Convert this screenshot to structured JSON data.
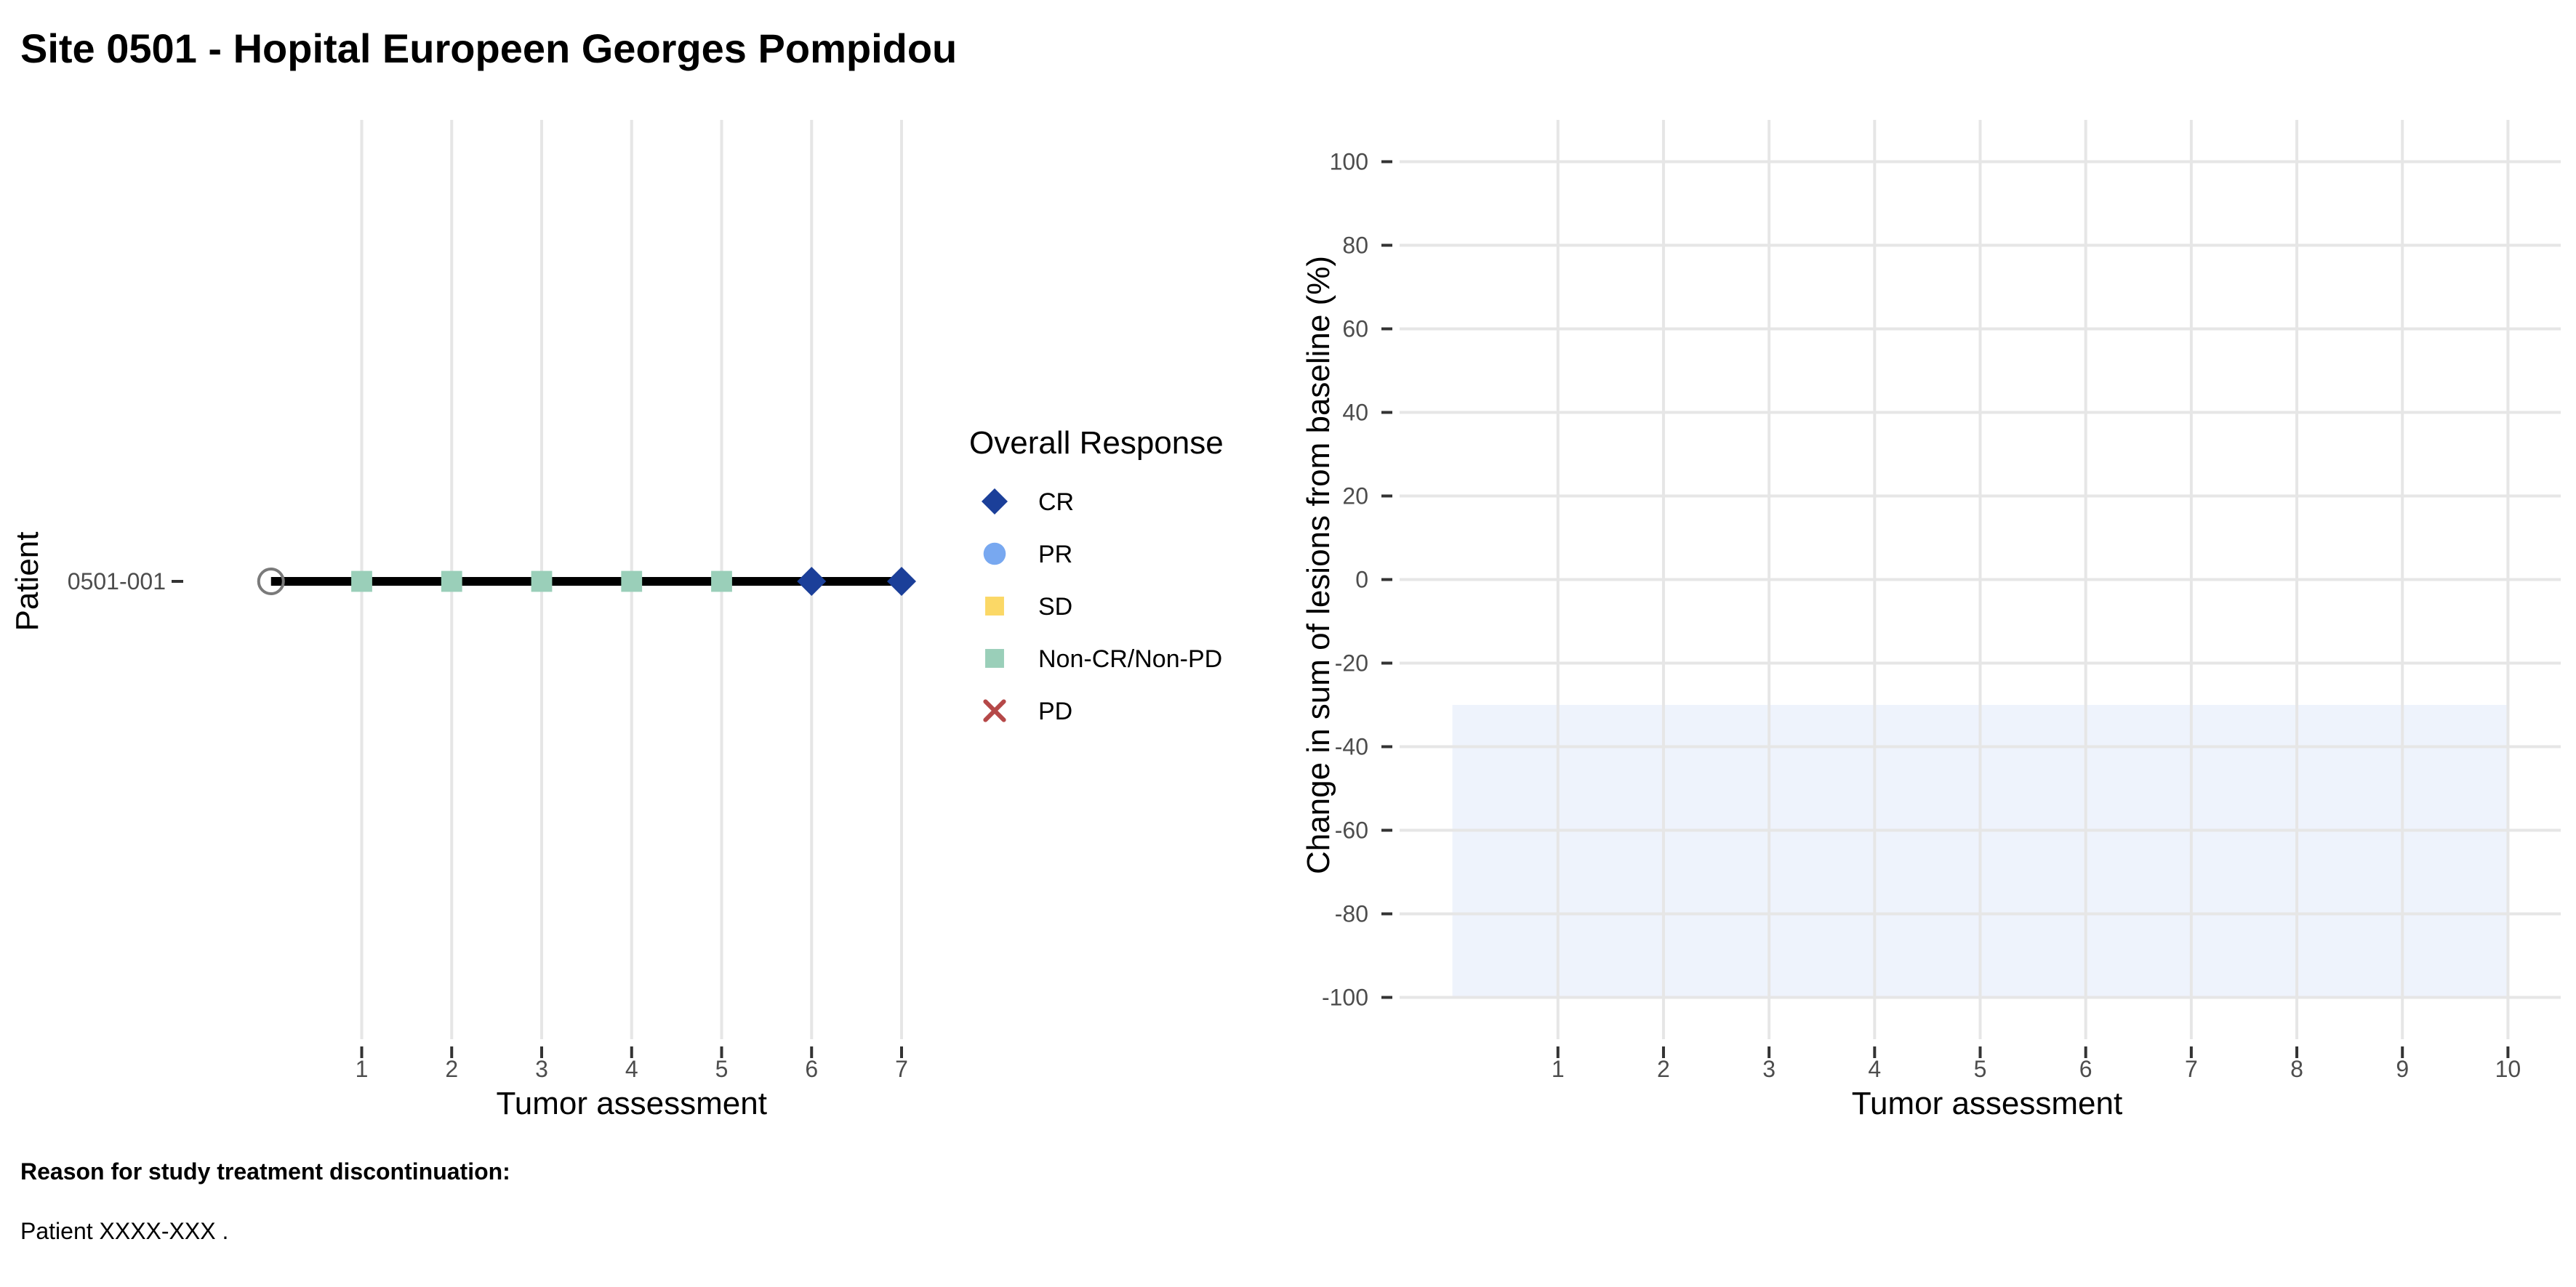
{
  "title": "Site 0501 - Hopital Europeen Georges Pompidou",
  "footer": {
    "reason_label": "Reason for study treatment discontinuation:",
    "reason_text": "Patient XXXX-XXX ."
  },
  "colors": {
    "CR": "#1b3f99",
    "PR": "#78a8f0",
    "SD": "#fbd866",
    "NonCRNonPD": "#9acfb9",
    "PD": "#b54848",
    "grid": "#e6e6e6",
    "band": "#eef3fc",
    "line": "#000000",
    "axis_text": "#4d4d4d"
  },
  "chart_data": [
    {
      "type": "scatter",
      "subtype": "swimmer",
      "xlabel": "Tumor assessment",
      "ylabel": "Patient",
      "x_ticks": [
        1,
        2,
        3,
        4,
        5,
        6,
        7
      ],
      "xlim": [
        -1,
        7
      ],
      "y_categories": [
        "0501-001"
      ],
      "grid": "vertical",
      "patients": [
        {
          "id": "0501-001",
          "line_end": 7,
          "baseline_marker": "open-circle",
          "assessments": [
            {
              "x": 1,
              "response": "Non-CR/Non-PD"
            },
            {
              "x": 2,
              "response": "Non-CR/Non-PD"
            },
            {
              "x": 3,
              "response": "Non-CR/Non-PD"
            },
            {
              "x": 4,
              "response": "Non-CR/Non-PD"
            },
            {
              "x": 5,
              "response": "Non-CR/Non-PD"
            },
            {
              "x": 6,
              "response": "CR"
            },
            {
              "x": 7,
              "response": "CR"
            }
          ]
        }
      ],
      "legend": {
        "title": "Overall Response",
        "placement": "right",
        "entries": [
          {
            "label": "CR",
            "shape": "diamond",
            "color_key": "CR"
          },
          {
            "label": "PR",
            "shape": "circle",
            "color_key": "PR"
          },
          {
            "label": "SD",
            "shape": "square",
            "color_key": "SD"
          },
          {
            "label": "Non-CR/Non-PD",
            "shape": "square",
            "color_key": "NonCRNonPD"
          },
          {
            "label": "PD",
            "shape": "cross",
            "color_key": "PD"
          }
        ]
      }
    },
    {
      "type": "line",
      "xlabel": "Tumor assessment",
      "ylabel": "Change in sum of lesions from baseline (%)",
      "x_ticks": [
        1,
        2,
        3,
        4,
        5,
        6,
        7,
        8,
        9,
        10
      ],
      "y_ticks": [
        100,
        80,
        60,
        40,
        20,
        0,
        -20,
        -40,
        -60,
        -80,
        -100
      ],
      "xlim": [
        -0.5,
        10.5
      ],
      "ylim": [
        -110,
        110
      ],
      "grid": "both",
      "series": [],
      "shaded_band": {
        "x": [
          0,
          10
        ],
        "y": [
          -100,
          -30
        ]
      }
    }
  ]
}
